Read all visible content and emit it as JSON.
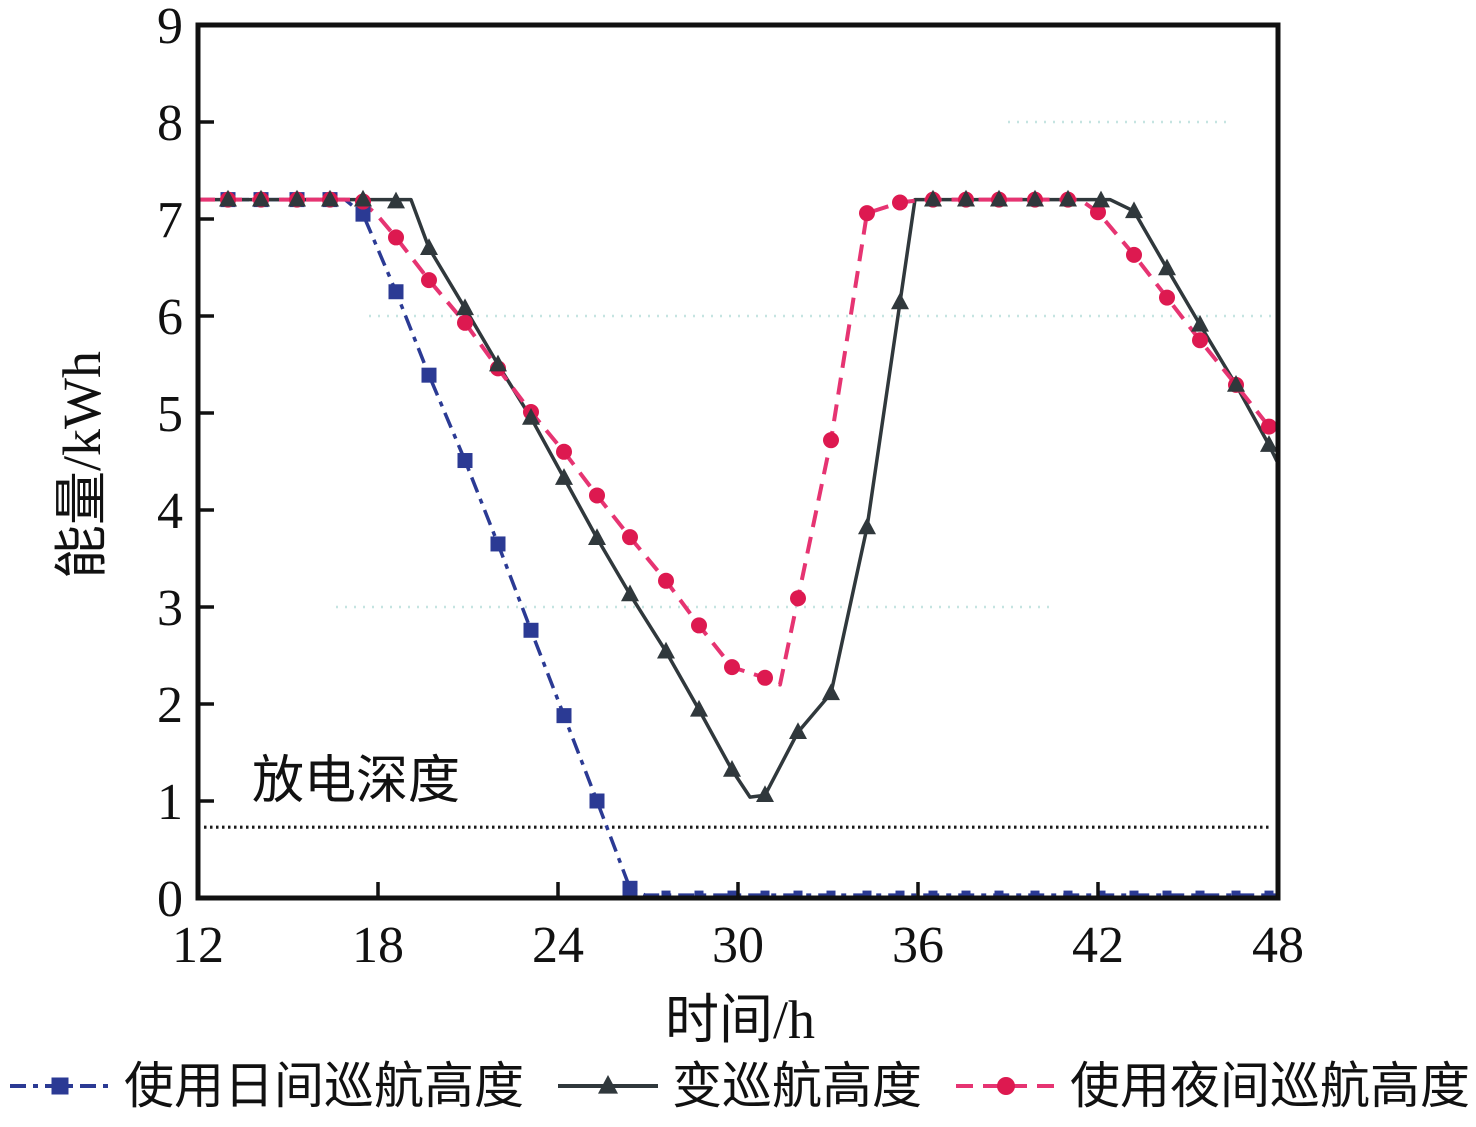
{
  "chart_data": {
    "type": "line",
    "title": "",
    "xlabel": "时间/h",
    "ylabel": "能量/kWh",
    "xlim": [
      12,
      48
    ],
    "ylim": [
      0,
      9
    ],
    "xticks": [
      12,
      18,
      24,
      30,
      36,
      42,
      48
    ],
    "yticks": [
      0,
      1,
      2,
      3,
      4,
      5,
      6,
      7,
      8,
      9
    ],
    "legend_position": "bottom",
    "grid": "faint dotted horizontal lines",
    "gridlines": [
      {
        "y": 3,
        "x1": 16.6,
        "x2": 40.5
      },
      {
        "y": 6,
        "x1": 17.7,
        "x2": 48
      },
      {
        "y": 8,
        "x1": 39.0,
        "x2": 46.5
      }
    ],
    "annotation": {
      "text": "放电深度",
      "x": 13.8,
      "y": 1.35
    },
    "dod_line": {
      "label": "depth-of-discharge-line",
      "y": 0.73,
      "x1": 12,
      "x2": 47.8,
      "style": "dotted",
      "color": "#1a1a1a"
    },
    "series": [
      {
        "name": "使用日间巡航高度",
        "color": "#2b3a94",
        "marker": "square",
        "marker_size": 15,
        "line_width": 3.5,
        "line_dash": "16 7 5 7",
        "line": [
          [
            12,
            7.2
          ],
          [
            16.9,
            7.2
          ],
          [
            17.5,
            7.05
          ],
          [
            18.6,
            6.25
          ],
          [
            19.7,
            5.39
          ],
          [
            20.9,
            4.51
          ],
          [
            22,
            3.65
          ],
          [
            23.1,
            2.76
          ],
          [
            24.2,
            1.88
          ],
          [
            25.3,
            1.0
          ],
          [
            26.4,
            0.1
          ],
          [
            26.9,
            0.03
          ],
          [
            48,
            0.03
          ]
        ],
        "markers": [
          [
            13,
            7.2
          ],
          [
            14.1,
            7.2
          ],
          [
            15.3,
            7.2
          ],
          [
            16.4,
            7.2
          ],
          [
            17.5,
            7.05
          ],
          [
            18.6,
            6.25
          ],
          [
            19.7,
            5.39
          ],
          [
            20.9,
            4.51
          ],
          [
            22,
            3.65
          ],
          [
            23.1,
            2.76
          ],
          [
            24.2,
            1.88
          ],
          [
            25.3,
            1.0
          ],
          [
            26.4,
            0.1
          ]
        ],
        "markers_small": [
          [
            27.6,
            0.03
          ],
          [
            28.7,
            0.03
          ],
          [
            29.8,
            0.03
          ],
          [
            30.9,
            0.03
          ],
          [
            32,
            0.03
          ],
          [
            33.1,
            0.03
          ],
          [
            34.3,
            0.03
          ],
          [
            35.4,
            0.03
          ],
          [
            36.5,
            0.03
          ],
          [
            37.6,
            0.03
          ],
          [
            38.7,
            0.03
          ],
          [
            39.9,
            0.03
          ],
          [
            41,
            0.03
          ],
          [
            42.1,
            0.03
          ],
          [
            43.2,
            0.03
          ],
          [
            44.3,
            0.03
          ],
          [
            45.4,
            0.03
          ],
          [
            46.6,
            0.03
          ],
          [
            47.7,
            0.03
          ]
        ]
      },
      {
        "name": "变巡航高度",
        "color": "#30383c",
        "marker": "triangle",
        "marker_size": 18,
        "line_width": 3.5,
        "line_dash": "",
        "line": [
          [
            12,
            7.2
          ],
          [
            19.1,
            7.2
          ],
          [
            19.7,
            6.7
          ],
          [
            20.9,
            6.08
          ],
          [
            22,
            5.5
          ],
          [
            23.1,
            4.95
          ],
          [
            24.2,
            4.33
          ],
          [
            25.3,
            3.71
          ],
          [
            26.4,
            3.13
          ],
          [
            27.6,
            2.54
          ],
          [
            28.7,
            1.94
          ],
          [
            29.8,
            1.32
          ],
          [
            30.4,
            1.04
          ],
          [
            30.9,
            1.06
          ],
          [
            32,
            1.71
          ],
          [
            33.1,
            2.11
          ],
          [
            34.3,
            3.82
          ],
          [
            35.4,
            6.14
          ],
          [
            35.9,
            7.2
          ],
          [
            42.4,
            7.2
          ],
          [
            43.2,
            7.08
          ],
          [
            44.3,
            6.49
          ],
          [
            45.4,
            5.91
          ],
          [
            46.6,
            5.29
          ],
          [
            47.7,
            4.67
          ],
          [
            48,
            4.48
          ]
        ],
        "markers": [
          [
            13,
            7.2
          ],
          [
            14.1,
            7.2
          ],
          [
            15.3,
            7.2
          ],
          [
            16.4,
            7.2
          ],
          [
            17.5,
            7.2
          ],
          [
            18.6,
            7.18
          ],
          [
            19.7,
            6.7
          ],
          [
            20.9,
            6.08
          ],
          [
            22,
            5.5
          ],
          [
            23.1,
            4.95
          ],
          [
            24.2,
            4.33
          ],
          [
            25.3,
            3.71
          ],
          [
            26.4,
            3.13
          ],
          [
            27.6,
            2.54
          ],
          [
            28.7,
            1.94
          ],
          [
            29.8,
            1.32
          ],
          [
            30.9,
            1.06
          ],
          [
            32,
            1.71
          ],
          [
            33.1,
            2.11
          ],
          [
            34.3,
            3.82
          ],
          [
            35.4,
            6.14
          ],
          [
            36.5,
            7.2
          ],
          [
            37.6,
            7.2
          ],
          [
            38.7,
            7.2
          ],
          [
            39.9,
            7.2
          ],
          [
            41,
            7.2
          ],
          [
            42.1,
            7.19
          ],
          [
            43.2,
            7.08
          ],
          [
            44.3,
            6.49
          ],
          [
            45.4,
            5.91
          ],
          [
            46.6,
            5.29
          ],
          [
            47.7,
            4.67
          ]
        ],
        "markers_small": []
      },
      {
        "name": "使用夜间巡航高度",
        "color": "#e63472",
        "marker_color": "#dd1950",
        "marker": "circle",
        "marker_size": 16,
        "line_width": 4,
        "line_dash": "17 10",
        "line": [
          [
            12,
            7.2
          ],
          [
            17.4,
            7.2
          ],
          [
            18,
            7.03
          ],
          [
            18.6,
            6.81
          ],
          [
            19.7,
            6.37
          ],
          [
            20.9,
            5.93
          ],
          [
            22,
            5.46
          ],
          [
            23.1,
            5.01
          ],
          [
            24.2,
            4.6
          ],
          [
            25.3,
            4.15
          ],
          [
            26.4,
            3.72
          ],
          [
            27.6,
            3.27
          ],
          [
            28.7,
            2.81
          ],
          [
            29.8,
            2.38
          ],
          [
            30.9,
            2.27
          ],
          [
            31.4,
            2.2
          ],
          [
            32,
            3.09
          ],
          [
            33.1,
            4.72
          ],
          [
            34.3,
            7.06
          ],
          [
            35.4,
            7.17
          ],
          [
            36.2,
            7.2
          ],
          [
            41.4,
            7.2
          ],
          [
            42,
            7.07
          ],
          [
            43.2,
            6.63
          ],
          [
            44.3,
            6.19
          ],
          [
            45.4,
            5.75
          ],
          [
            46.6,
            5.29
          ],
          [
            47.7,
            4.86
          ],
          [
            48,
            4.82
          ]
        ],
        "markers": [
          [
            13,
            7.2
          ],
          [
            14.1,
            7.2
          ],
          [
            15.3,
            7.2
          ],
          [
            16.4,
            7.2
          ],
          [
            17.5,
            7.18
          ],
          [
            18.6,
            6.81
          ],
          [
            19.7,
            6.37
          ],
          [
            20.9,
            5.93
          ],
          [
            22,
            5.46
          ],
          [
            23.1,
            5.01
          ],
          [
            24.2,
            4.6
          ],
          [
            25.3,
            4.15
          ],
          [
            26.4,
            3.72
          ],
          [
            27.6,
            3.27
          ],
          [
            28.7,
            2.81
          ],
          [
            29.8,
            2.38
          ],
          [
            30.9,
            2.27
          ],
          [
            32,
            3.09
          ],
          [
            33.1,
            4.72
          ],
          [
            34.3,
            7.06
          ],
          [
            35.4,
            7.17
          ],
          [
            36.5,
            7.2
          ],
          [
            37.6,
            7.2
          ],
          [
            38.7,
            7.2
          ],
          [
            39.9,
            7.2
          ],
          [
            41,
            7.2
          ],
          [
            42,
            7.07
          ],
          [
            43.2,
            6.63
          ],
          [
            44.3,
            6.19
          ],
          [
            45.4,
            5.75
          ],
          [
            46.6,
            5.29
          ],
          [
            47.7,
            4.86
          ]
        ],
        "markers_small": []
      }
    ],
    "colors": {
      "axis": "#111111",
      "grid_faint": "#c5e4e1",
      "background": "#ffffff"
    }
  }
}
